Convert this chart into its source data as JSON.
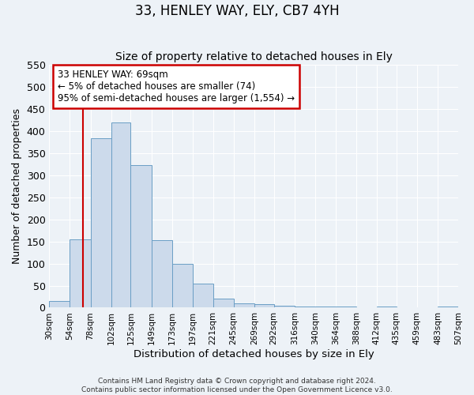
{
  "title": "33, HENLEY WAY, ELY, CB7 4YH",
  "subtitle": "Size of property relative to detached houses in Ely",
  "xlabel": "Distribution of detached houses by size in Ely",
  "ylabel": "Number of detached properties",
  "bar_color": "#ccdaeb",
  "bar_edge_color": "#6a9ec5",
  "bin_edges": [
    30,
    54,
    78,
    102,
    125,
    149,
    173,
    197,
    221,
    245,
    269,
    292,
    316,
    340,
    364,
    388,
    412,
    435,
    459,
    483,
    507
  ],
  "bar_heights": [
    15,
    155,
    383,
    420,
    323,
    153,
    100,
    55,
    20,
    10,
    8,
    5,
    2,
    2,
    2,
    1,
    2,
    1,
    1,
    2
  ],
  "tick_labels": [
    "30sqm",
    "54sqm",
    "78sqm",
    "102sqm",
    "125sqm",
    "149sqm",
    "173sqm",
    "197sqm",
    "221sqm",
    "245sqm",
    "269sqm",
    "292sqm",
    "316sqm",
    "340sqm",
    "364sqm",
    "388sqm",
    "412sqm",
    "435sqm",
    "459sqm",
    "483sqm",
    "507sqm"
  ],
  "ylim": [
    0,
    550
  ],
  "yticks": [
    0,
    50,
    100,
    150,
    200,
    250,
    300,
    350,
    400,
    450,
    500,
    550
  ],
  "vline_x": 69,
  "vline_color": "#cc0000",
  "annotation_text": "33 HENLEY WAY: 69sqm\n← 5% of detached houses are smaller (74)\n95% of semi-detached houses are larger (1,554) →",
  "annotation_box_color": "#ffffff",
  "annotation_box_edge_color": "#cc0000",
  "footer_text": "Contains HM Land Registry data © Crown copyright and database right 2024.\nContains public sector information licensed under the Open Government Licence v3.0.",
  "background_color": "#edf2f7",
  "grid_color": "#ffffff",
  "title_fontsize": 12,
  "subtitle_fontsize": 10,
  "tick_fontsize": 7.5,
  "ylabel_fontsize": 9,
  "xlabel_fontsize": 9.5,
  "annotation_fontsize": 8.5,
  "footer_fontsize": 6.5
}
